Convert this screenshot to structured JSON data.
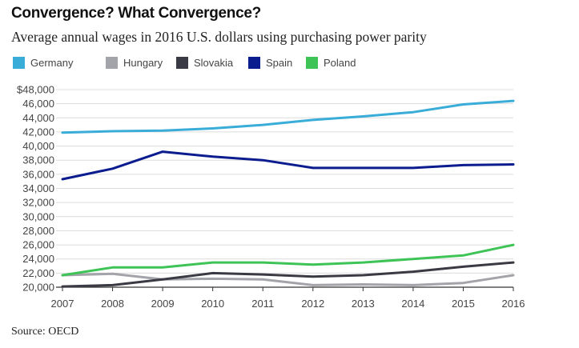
{
  "header": {
    "title": "Convergence? What Convergence?",
    "subtitle": "Average annual wages in 2016 U.S. dollars using purchasing power parity"
  },
  "footer": {
    "source": "Source: OECD"
  },
  "chart_data": {
    "type": "line",
    "x": [
      2007,
      2008,
      2009,
      2010,
      2011,
      2012,
      2013,
      2014,
      2015,
      2016
    ],
    "ylim": [
      20000,
      48000
    ],
    "yticks": [
      20000,
      22000,
      24000,
      26000,
      28000,
      30000,
      32000,
      34000,
      36000,
      38000,
      40000,
      42000,
      44000,
      46000,
      48000
    ],
    "ytick_labels": [
      "20,000",
      "22,000",
      "24,000",
      "26,000",
      "28,000",
      "30,000",
      "32,000",
      "34,000",
      "36,000",
      "38,000",
      "40,000",
      "42,000",
      "44,000",
      "46,000",
      "$48,000"
    ],
    "grid": true,
    "legend_position": "top-left",
    "series": [
      {
        "name": "Germany",
        "color": "#3aacd8",
        "values": [
          41900,
          42100,
          42200,
          42500,
          43000,
          43700,
          44200,
          44800,
          45900,
          46400
        ]
      },
      {
        "name": "Hungary",
        "color": "#a3a3aa",
        "values": [
          21700,
          21900,
          21100,
          21200,
          21100,
          20300,
          20400,
          20300,
          20600,
          21700
        ]
      },
      {
        "name": "Slovakia",
        "color": "#3a3a44",
        "values": [
          20100,
          20300,
          21100,
          22000,
          21800,
          21500,
          21700,
          22200,
          22900,
          23500
        ]
      },
      {
        "name": "Spain",
        "color": "#0a1c8e",
        "values": [
          35300,
          36800,
          39200,
          38500,
          38000,
          36900,
          36900,
          36900,
          37300,
          37400
        ]
      },
      {
        "name": "Poland",
        "color": "#3ec456",
        "values": [
          21700,
          22800,
          22800,
          23500,
          23500,
          23200,
          23500,
          24000,
          24500,
          26000
        ]
      }
    ]
  }
}
